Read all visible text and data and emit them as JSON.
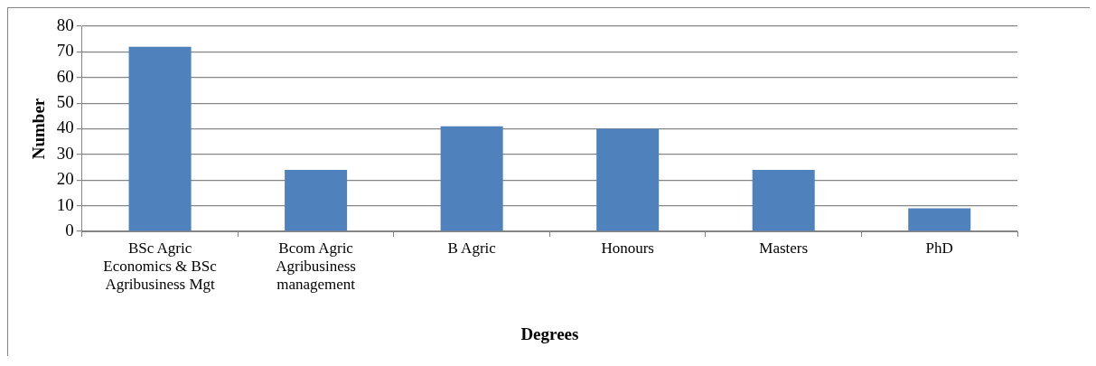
{
  "chart_data": {
    "type": "bar",
    "xlabel": "Degrees",
    "ylabel": "Number",
    "categories": [
      "BSc Agric Economics & BSc Agribusiness Mgt",
      "Bcom Agric Agribusiness management",
      "B Agric",
      "Honours",
      "Masters",
      "PhD"
    ],
    "values": [
      72,
      24,
      41,
      40,
      24,
      9
    ],
    "color": "#4f81bd",
    "ylim": [
      0,
      80
    ],
    "yticks": [
      0,
      10,
      20,
      30,
      40,
      50,
      60,
      70,
      80
    ],
    "grid": "y",
    "legend": false
  }
}
